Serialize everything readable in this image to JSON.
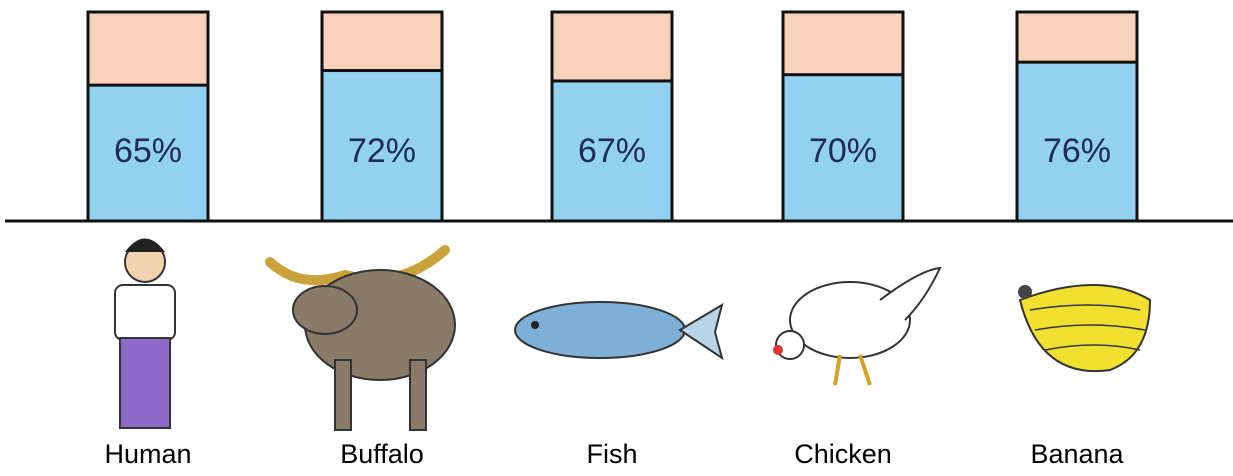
{
  "chart_data": {
    "type": "bar",
    "categories": [
      "Human",
      "Buffalo",
      "Fish",
      "Chicken",
      "Banana"
    ],
    "values": [
      65,
      72,
      67,
      70,
      76
    ],
    "value_labels": [
      "65%",
      "72%",
      "67%",
      "70%",
      "76%"
    ],
    "color": "#92d1f0",
    "ylim": [
      0,
      100
    ]
  }
}
